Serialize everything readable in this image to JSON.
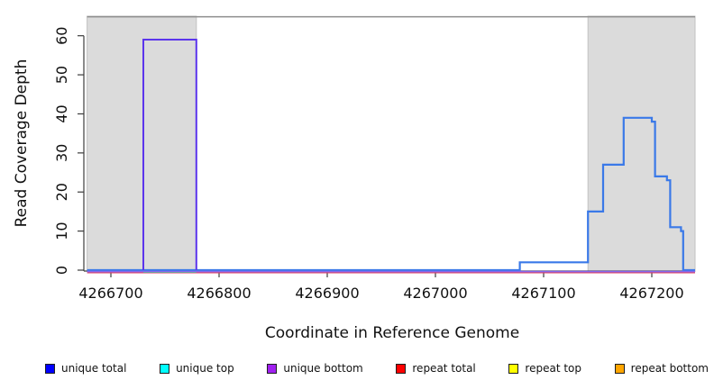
{
  "chart_data": {
    "type": "line",
    "subtype": "step-coverage-plot",
    "title": "",
    "xlabel": "Coordinate in Reference Genome",
    "ylabel": "Read Coverage Depth",
    "xlim": [
      4266678,
      4267240
    ],
    "ylim": [
      0,
      65
    ],
    "xticks": [
      4266700,
      4266800,
      4266900,
      4267000,
      4267100,
      4267200
    ],
    "yticks": [
      0,
      10,
      20,
      30,
      40,
      50,
      60
    ],
    "grid": false,
    "frame_top_value": 65,
    "colors": {
      "shaded_region_fill": "#DBDBDB",
      "shaded_region_border": "#C2C2C2",
      "frame_top_line": "#8E8E8E",
      "axis": "#3C3C3C",
      "tick_label": "#111111"
    },
    "shaded_regions": [
      {
        "name": "left-gray-region",
        "x0": 4266678,
        "x1": 4266779
      },
      {
        "name": "right-gray-region",
        "x0": 4267141,
        "x1": 4267240
      }
    ],
    "series": [
      {
        "id": "repeat-total-baseline",
        "legend_name": "repeat total",
        "color": "#DC3C64",
        "width": 1.4,
        "dy": 2.8,
        "points": [
          [
            4266678,
            0
          ],
          [
            4267240,
            0
          ]
        ]
      },
      {
        "id": "unique-total",
        "legend_name": "unique total",
        "color": "#3A79E8",
        "width": 2.2,
        "dy": 0,
        "points": [
          [
            4266678,
            0
          ],
          [
            4267078,
            0
          ],
          [
            4267078,
            2
          ],
          [
            4267141,
            2
          ],
          [
            4267141,
            15
          ],
          [
            4267155,
            15
          ],
          [
            4267155,
            27
          ],
          [
            4267174,
            27
          ],
          [
            4267174,
            39
          ],
          [
            4267200,
            39
          ],
          [
            4267200,
            38
          ],
          [
            4267203,
            38
          ],
          [
            4267203,
            24
          ],
          [
            4267214,
            24
          ],
          [
            4267214,
            23
          ],
          [
            4267217,
            23
          ],
          [
            4267217,
            11
          ],
          [
            4267227,
            11
          ],
          [
            4267227,
            10
          ],
          [
            4267229,
            10
          ],
          [
            4267229,
            0
          ],
          [
            4267240,
            0
          ]
        ]
      },
      {
        "id": "unique-top-segment",
        "legend_name": "unique top",
        "color": "#62C16A",
        "width": 1.6,
        "dy": 2.2,
        "points": [
          [
            4266730,
            0
          ],
          [
            4266779,
            0
          ]
        ]
      },
      {
        "id": "unique-bottom-baseline",
        "legend_name": "unique bottom",
        "color": "#8468EE",
        "width": 1.6,
        "dy": 1.6,
        "points": [
          [
            4266678,
            0
          ],
          [
            4267240,
            0
          ]
        ]
      },
      {
        "id": "unique-bottom-peak",
        "legend_name": "unique bottom",
        "color": "#5B35EC",
        "width": 2.0,
        "dy": 0,
        "points": [
          [
            4266730,
            0
          ],
          [
            4266730,
            59
          ],
          [
            4266779,
            59
          ],
          [
            4266779,
            0
          ]
        ]
      }
    ],
    "legend": {
      "position": "bottom",
      "items": [
        {
          "id": "unique-total",
          "label": "unique total",
          "color": "#0000FF"
        },
        {
          "id": "unique-top",
          "label": "unique top",
          "color": "#00FFFF"
        },
        {
          "id": "unique-bottom",
          "label": "unique bottom",
          "color": "#A020F0"
        },
        {
          "id": "repeat-total",
          "label": "repeat total",
          "color": "#FF0000"
        },
        {
          "id": "repeat-top",
          "label": "repeat top",
          "color": "#FFFF00"
        },
        {
          "id": "repeat-bottom",
          "label": "repeat bottom",
          "color": "#FFA500"
        }
      ]
    }
  }
}
